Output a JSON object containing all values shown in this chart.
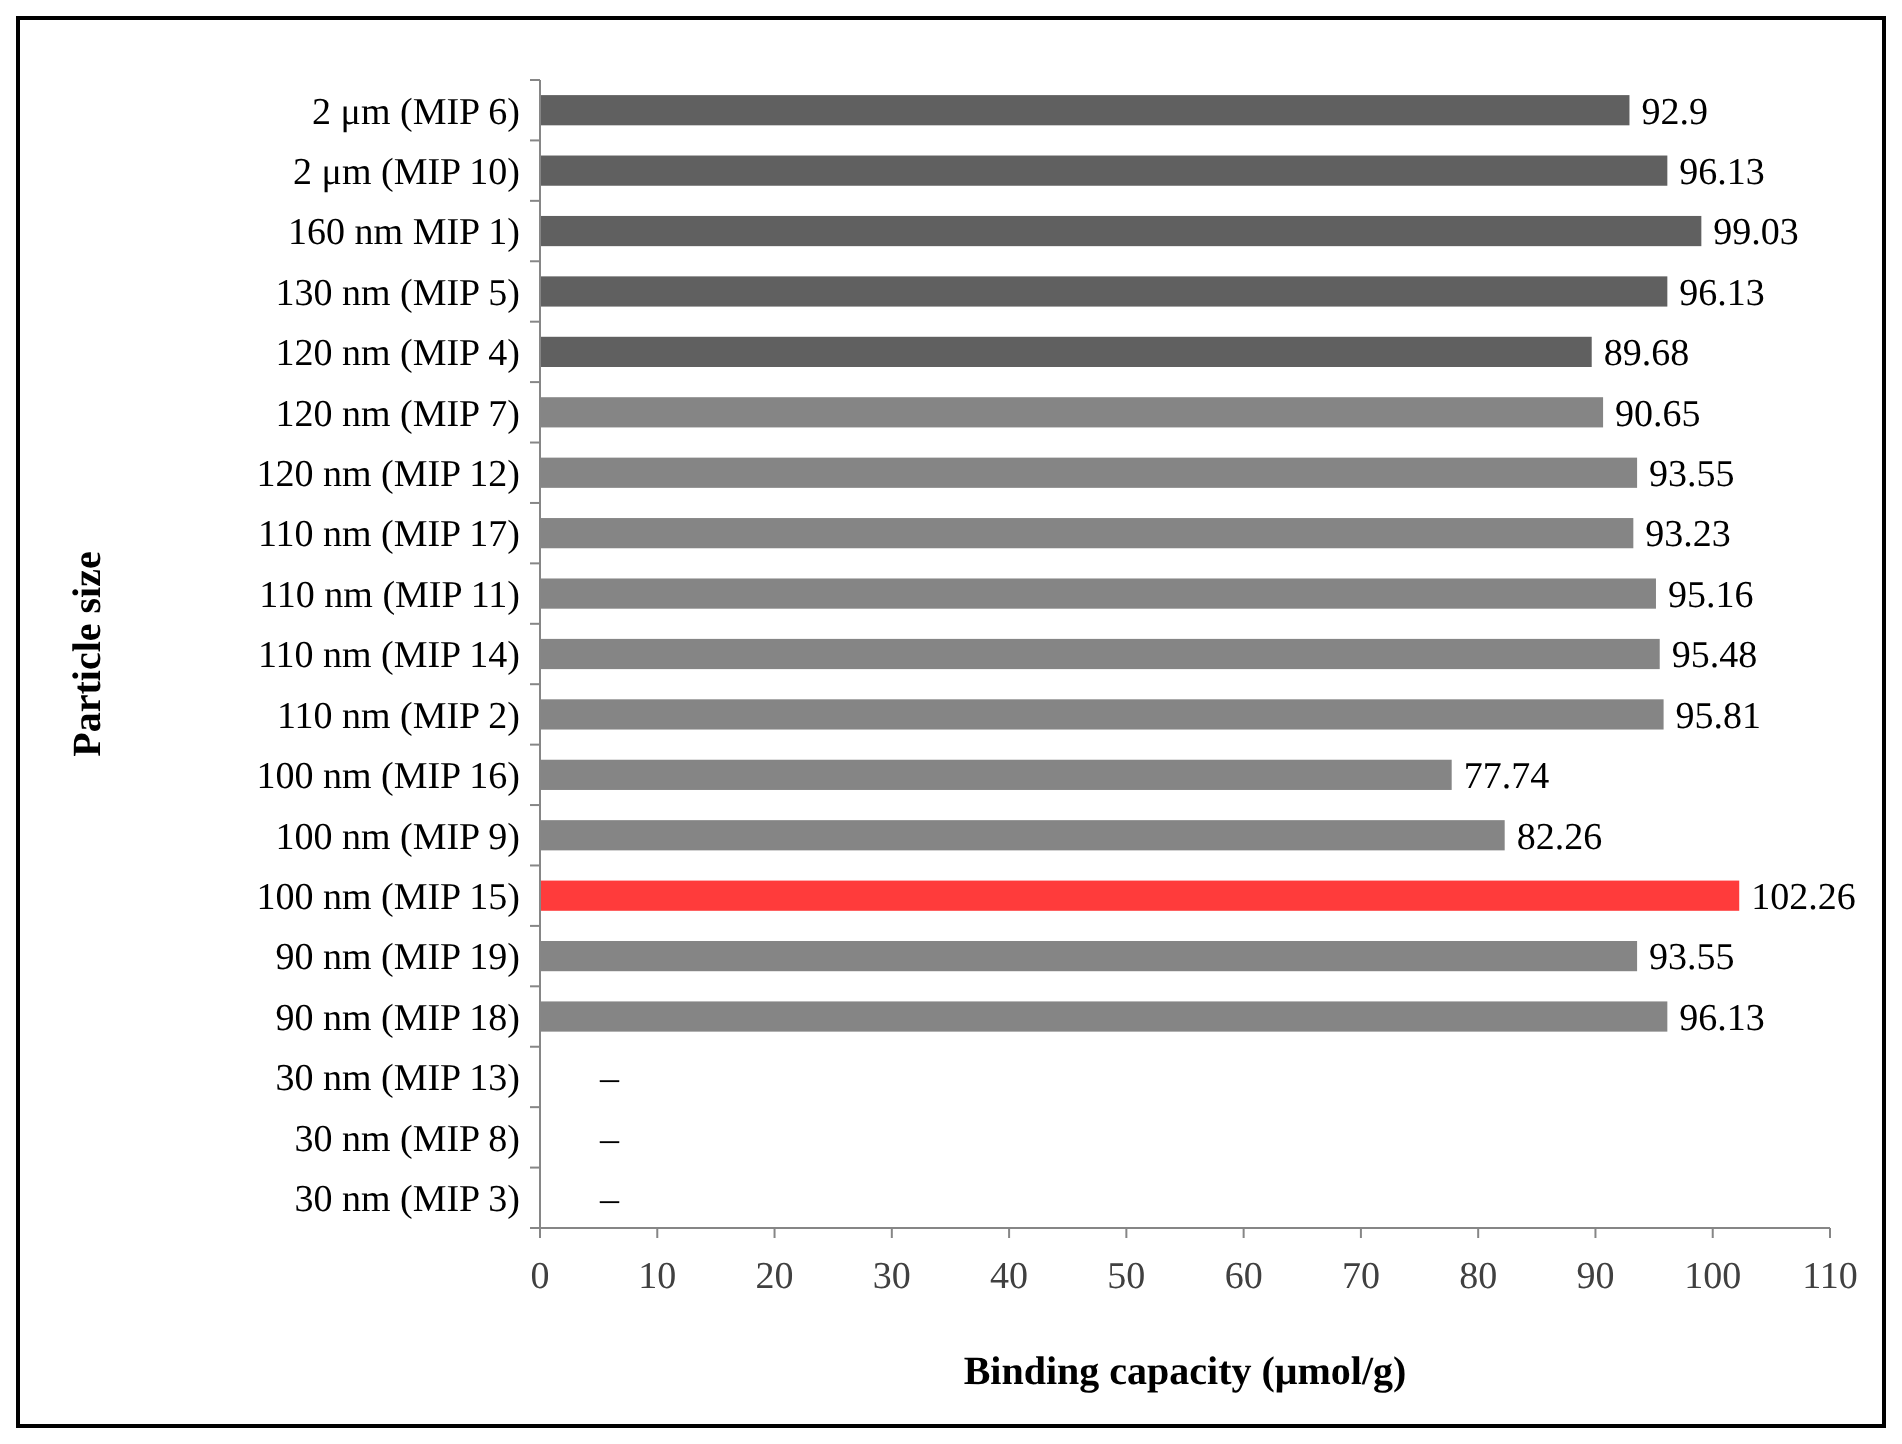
{
  "chart_data": {
    "type": "bar",
    "orientation": "horizontal",
    "xlabel": "Binding capacity (μmol/g)",
    "ylabel": "Particle size",
    "categories": [
      "2 μm (MIP 6)",
      "2 μm (MIP 10)",
      "160 nm MIP 1)",
      "130 nm (MIP 5)",
      "120 nm (MIP 4)",
      "120 nm (MIP 7)",
      "120 nm (MIP 12)",
      "110 nm (MIP 17)",
      "110 nm (MIP 11)",
      "110 nm (MIP 14)",
      "110 nm (MIP 2)",
      "100 nm (MIP 16)",
      "100 nm (MIP 9)",
      "100 nm (MIP 15)",
      "90 nm (MIP 19)",
      "90 nm (MIP 18)",
      "30 nm (MIP 13)",
      "30 nm (MIP 8)",
      "30 nm (MIP 3)"
    ],
    "values": [
      92.9,
      96.13,
      99.03,
      96.13,
      89.68,
      90.65,
      93.55,
      93.23,
      95.16,
      95.48,
      95.81,
      77.74,
      82.26,
      102.26,
      93.55,
      96.13,
      null,
      null,
      null
    ],
    "value_labels": [
      "92.9",
      "96.13",
      "99.03",
      "96.13",
      "89.68",
      "90.65",
      "93.55",
      "93.23",
      "95.16",
      "95.48",
      "95.81",
      "77.74",
      "82.26",
      "102.26",
      "93.55",
      "96.13",
      "–",
      "–",
      "–"
    ],
    "colors": [
      "#606060",
      "#606060",
      "#606060",
      "#606060",
      "#606060",
      "#858585",
      "#858585",
      "#858585",
      "#858585",
      "#858585",
      "#858585",
      "#858585",
      "#858585",
      "#ff3b3b",
      "#858585",
      "#858585",
      "#858585",
      "#858585",
      "#858585"
    ],
    "xlim": [
      0,
      110
    ],
    "xticks": [
      0,
      10,
      20,
      30,
      40,
      50,
      60,
      70,
      80,
      90,
      100,
      110
    ],
    "grid": false
  }
}
